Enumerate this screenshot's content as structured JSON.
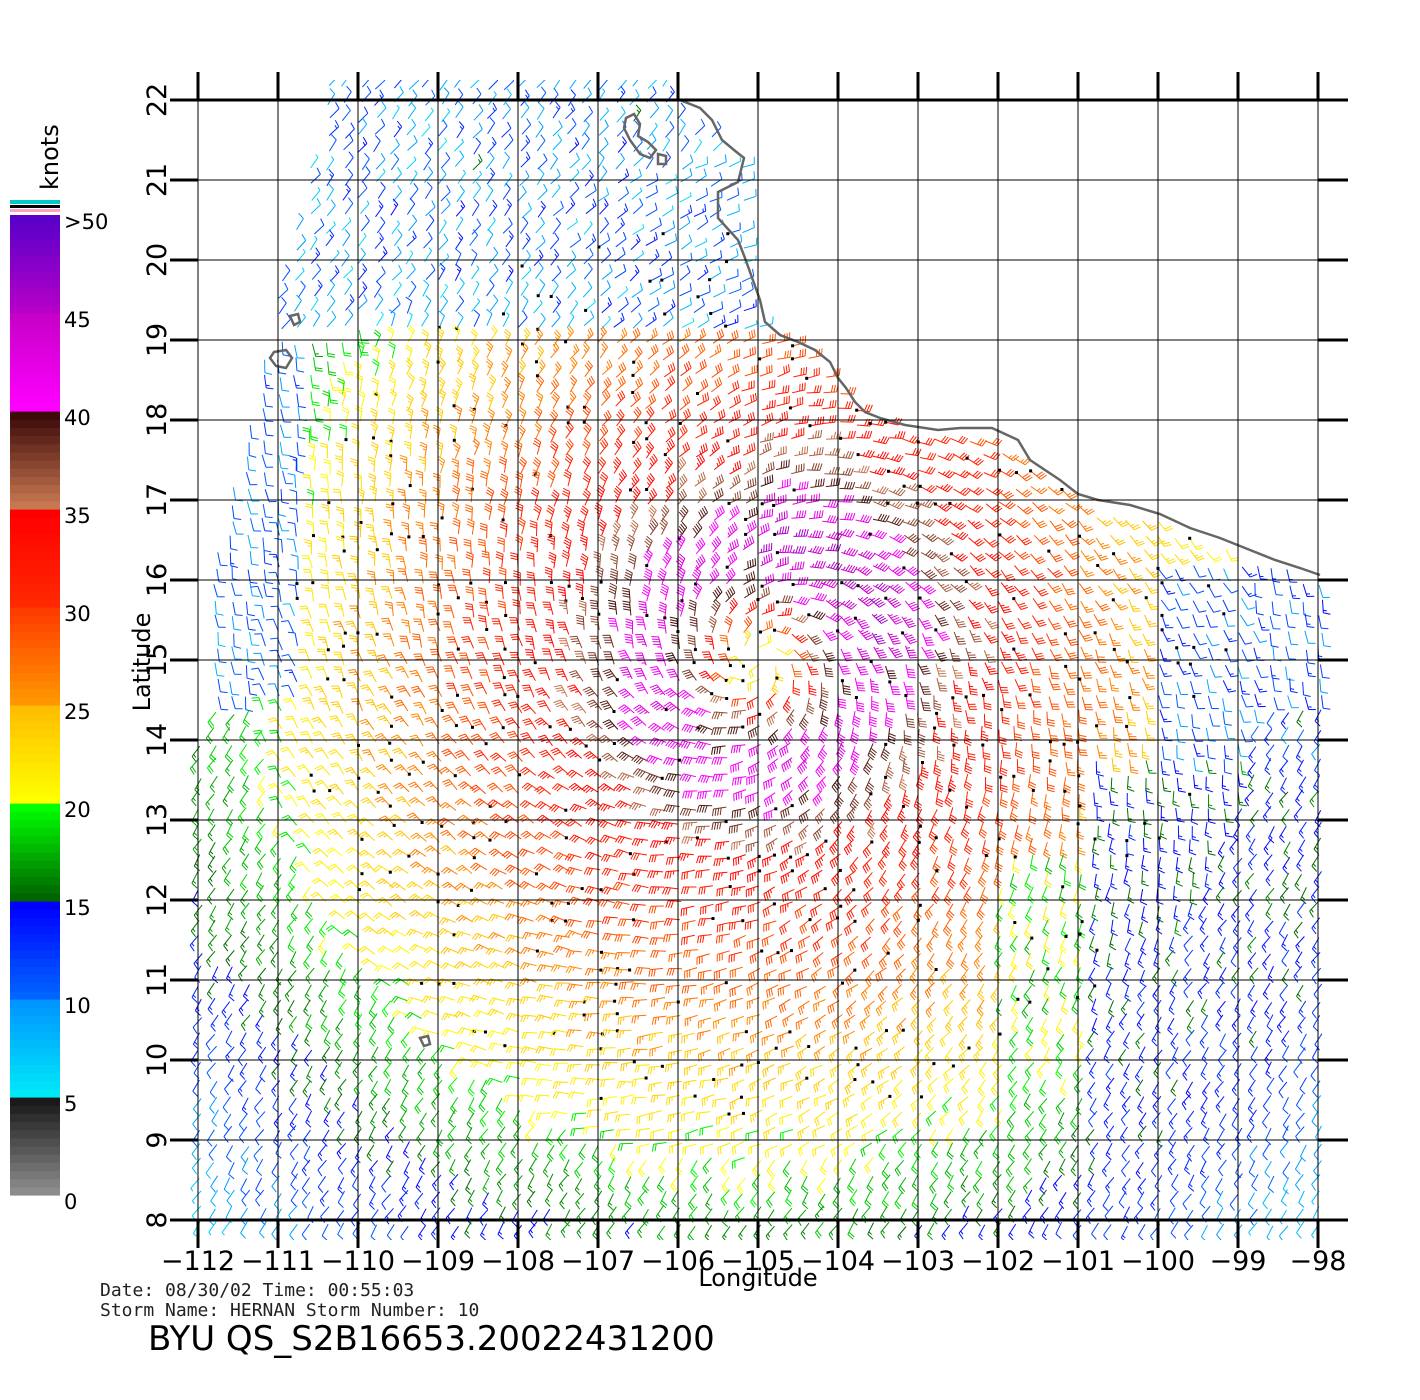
{
  "chart_data": {
    "type": "wind-barb-map",
    "xlabel": "Longitude",
    "ylabel": "Latitude",
    "x_ticks": [
      "-112",
      "-111",
      "-110",
      "-109",
      "-108",
      "-107",
      "-106",
      "-105",
      "-104",
      "-103",
      "-102",
      "-101",
      "-100",
      "-99",
      "-98"
    ],
    "y_ticks": [
      "8",
      "9",
      "10",
      "11",
      "12",
      "13",
      "14",
      "15",
      "16",
      "17",
      "18",
      "19",
      "20",
      "21",
      "22"
    ],
    "xlim": [
      -112,
      -97.6
    ],
    "ylim": [
      8,
      22.3
    ],
    "grid": true,
    "storm_center": {
      "lon": -105,
      "lat": 15
    },
    "colorbar": {
      "title": "knots",
      "labels": [
        ">50",
        "45",
        "40",
        "35",
        "30",
        "25",
        "20",
        "15",
        "10",
        "5",
        "0"
      ],
      "segments": [
        {
          "from": 0,
          "to": 5,
          "colors": [
            "#8c8c8c",
            "#1a1a1a"
          ]
        },
        {
          "from": 5,
          "to": 10,
          "colors": [
            "#00e8f8",
            "#0096ff"
          ]
        },
        {
          "from": 10,
          "to": 15,
          "colors": [
            "#0064ff",
            "#0000ff"
          ]
        },
        {
          "from": 15,
          "to": 20,
          "colors": [
            "#006400",
            "#00ff00"
          ]
        },
        {
          "from": 20,
          "to": 25,
          "colors": [
            "#ffff00",
            "#ffbe00"
          ]
        },
        {
          "from": 25,
          "to": 30,
          "colors": [
            "#ff9600",
            "#ff3c00"
          ]
        },
        {
          "from": 30,
          "to": 35,
          "colors": [
            "#ff2800",
            "#ff0000"
          ]
        },
        {
          "from": 35,
          "to": 40,
          "colors": [
            "#c87850",
            "#3c0a0a"
          ]
        },
        {
          "from": 40,
          "to": 45,
          "colors": [
            "#ff00ff",
            "#c800c8"
          ]
        },
        {
          "from": 45,
          "to": 50,
          "colors": [
            "#b400c8",
            "#5a00c8"
          ]
        }
      ]
    }
  },
  "info": {
    "date_line": "Date: 08/30/02   Time: 00:55:03",
    "storm_line": "Storm  Name:  HERNAN    Storm  Number:  10",
    "file_id": "BYU  QS_S2B16653.20022431200"
  },
  "colors": {
    "coastline": "#666666",
    "grid": "#000000",
    "rain_flag": "#000000"
  }
}
